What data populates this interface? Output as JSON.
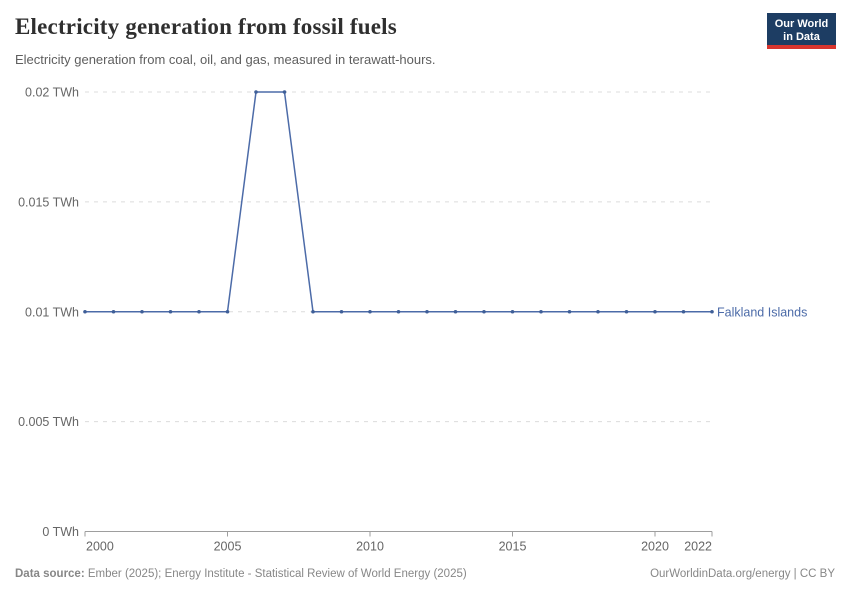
{
  "header": {
    "title": "Electricity generation from fossil fuels",
    "subtitle": "Electricity generation from coal, oil, and gas, measured in terawatt-hours.",
    "logo": {
      "line1": "Our World",
      "line2": "in Data",
      "bg_color": "#1d3d63",
      "accent_color": "#d8352e"
    }
  },
  "chart_data": {
    "type": "line",
    "title": "Electricity generation from fossil fuels",
    "subtitle": "Electricity generation from coal, oil, and gas, measured in terawatt-hours.",
    "xlabel": "",
    "ylabel": "TWh",
    "xlim": [
      2000,
      2022
    ],
    "ylim": [
      0,
      0.02
    ],
    "grid": "horizontal-dashed",
    "legend_position": "end-of-line-label",
    "x_ticks": [
      2000,
      2005,
      2010,
      2015,
      2020,
      2022
    ],
    "y_ticks": [
      {
        "value": 0,
        "label": "0 TWh"
      },
      {
        "value": 0.005,
        "label": "0.005 TWh"
      },
      {
        "value": 0.01,
        "label": "0.01 TWh"
      },
      {
        "value": 0.015,
        "label": "0.015 TWh"
      },
      {
        "value": 0.02,
        "label": "0.02 TWh"
      }
    ],
    "series": [
      {
        "name": "Falkland Islands",
        "color": "#4c6ba8",
        "marker_color": "#3f5f98",
        "x": [
          2000,
          2001,
          2002,
          2003,
          2004,
          2005,
          2006,
          2007,
          2008,
          2009,
          2010,
          2011,
          2012,
          2013,
          2014,
          2015,
          2016,
          2017,
          2018,
          2019,
          2020,
          2021,
          2022
        ],
        "values": [
          0.01,
          0.01,
          0.01,
          0.01,
          0.01,
          0.01,
          0.02,
          0.02,
          0.01,
          0.01,
          0.01,
          0.01,
          0.01,
          0.01,
          0.01,
          0.01,
          0.01,
          0.01,
          0.01,
          0.01,
          0.01,
          0.01,
          0.01
        ]
      }
    ],
    "colors": {
      "gridline": "#dcdcdc",
      "axis": "#9e9e9e",
      "tick_label": "#666666"
    }
  },
  "footer": {
    "source_label": "Data source:",
    "source_text": "Ember (2025); Energy Institute - Statistical Review of World Energy (2025)",
    "rights": "OurWorldinData.org/energy | CC BY"
  }
}
